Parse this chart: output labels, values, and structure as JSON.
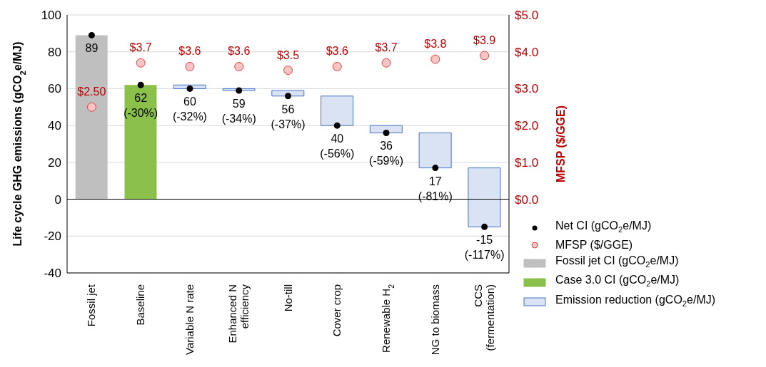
{
  "chart_data": {
    "type": "bar",
    "categories": [
      "Fossil jet",
      "Baseline",
      "Variable N rate",
      "Enhanced N efficiency",
      "No-till",
      "Cover crop",
      "Renewable H$_{2}$",
      "NG to biomass",
      "CCS (fermentation)"
    ],
    "ylabel": "Life cycle GHG emissions (gCO$_{2}$e/MJ)",
    "y2label": "MFSP ($/GGE)",
    "ylim": [
      -40,
      100
    ],
    "yticks": [
      -40,
      -20,
      0,
      20,
      40,
      60,
      80,
      100
    ],
    "y2lim": [
      -2,
      5
    ],
    "y2ticks": [
      {
        "value": 0,
        "label": "$0.0"
      },
      {
        "value": 1,
        "label": "$1.0"
      },
      {
        "value": 2,
        "label": "$2.0"
      },
      {
        "value": 3,
        "label": "$3.0"
      },
      {
        "value": 4,
        "label": "$4.0"
      },
      {
        "value": 5,
        "label": "$5.0"
      }
    ],
    "grid": "y",
    "legend": "right",
    "ref_lines": [
      {
        "axis": "y",
        "value": 0,
        "color": "#000000"
      }
    ],
    "series": [
      {
        "name": "Net CI (gCO$_{2}$e/MJ)",
        "type": "scatter",
        "color": "#000000",
        "values": [
          89,
          62,
          60,
          59,
          56,
          40,
          36,
          17,
          -15
        ],
        "value_labels": [
          "89",
          "62 (-30%)",
          "60 (-32%)",
          "59 (-34%)",
          "56 (-37%)",
          "40 (-56%)",
          "36 (-59%)",
          "17 (-81%)",
          "-15 (-117%)"
        ]
      },
      {
        "name": "MFSP ($/GGE)",
        "type": "scatter",
        "axis": "y2",
        "color": "#f8c4c4",
        "values": [
          2.5,
          3.7,
          3.6,
          3.6,
          3.5,
          3.6,
          3.7,
          3.8,
          3.9
        ],
        "value_labels": [
          "$2.50",
          "$3.7",
          "$3.6",
          "$3.6",
          "$3.5",
          "$3.6",
          "$3.7",
          "$3.8",
          "$3.9"
        ]
      },
      {
        "name": "Fossil jet CI (gCO$_{2}$e/MJ)",
        "color": "#bfbfbf",
        "values": [
          89,
          null,
          null,
          null,
          null,
          null,
          null,
          null,
          null
        ]
      },
      {
        "name": "Case 3.0 CI (gCO$_{2}$e/MJ)",
        "color": "#8bc14a",
        "values": [
          null,
          62,
          null,
          null,
          null,
          null,
          null,
          null,
          null
        ]
      },
      {
        "name": "Emission reduction (gCO$_{2}$e/MJ)",
        "color": "#dae3f3",
        "values": [
          null,
          null,
          2,
          1,
          3,
          16,
          4,
          19,
          32
        ],
        "base": [
          null,
          null,
          60,
          59,
          56,
          40,
          36,
          17,
          -15
        ]
      }
    ]
  }
}
